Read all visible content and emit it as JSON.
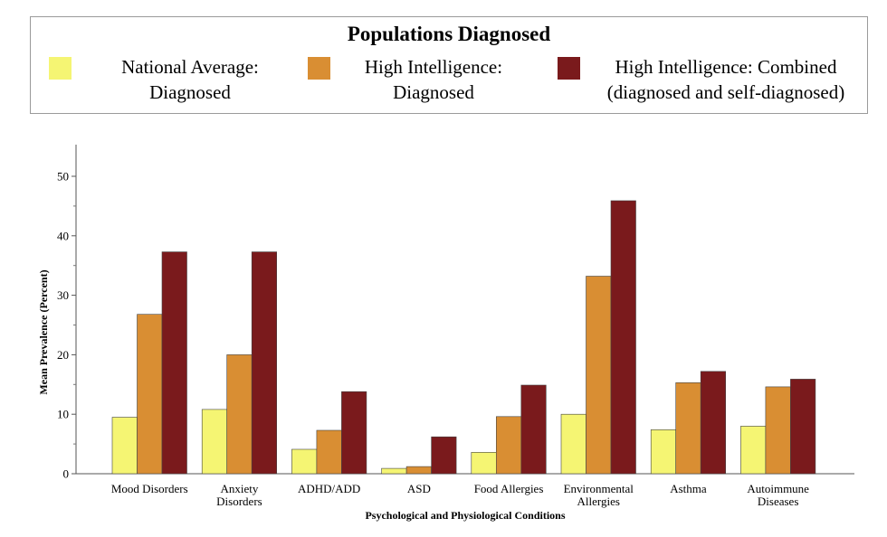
{
  "chart_data": {
    "type": "bar",
    "legend_title": "Populations Diagnosed",
    "categories": [
      [
        "Mood Disorders"
      ],
      [
        "Anxiety",
        "Disorders"
      ],
      [
        "ADHD/ADD"
      ],
      [
        "ASD"
      ],
      [
        "Food Allergies"
      ],
      [
        "Environmental",
        "Allergies"
      ],
      [
        "Asthma"
      ],
      [
        "Autoimmune",
        "Diseases"
      ]
    ],
    "series": [
      {
        "name": [
          "National Average:",
          "Diagnosed"
        ],
        "color": "#f5f573",
        "values": [
          9.5,
          10.8,
          4.1,
          0.9,
          3.6,
          10.0,
          7.4,
          8.0
        ]
      },
      {
        "name": [
          "High Intelligence:",
          "Diagnosed"
        ],
        "color": "#d98e33",
        "values": [
          26.8,
          20.0,
          7.3,
          1.2,
          9.6,
          33.2,
          15.3,
          14.6
        ]
      },
      {
        "name": [
          "High Intelligence: Combined",
          "(diagnosed and self-diagnosed)"
        ],
        "color": "#7a1a1c",
        "values": [
          37.3,
          37.3,
          13.8,
          6.2,
          14.9,
          45.9,
          17.2,
          15.9
        ]
      }
    ],
    "xlabel": "Psychological and Physiological Conditions",
    "ylabel": "Mean Prevalence (Percent)",
    "yticks": [
      0,
      10,
      20,
      30,
      40,
      50
    ],
    "ylim": [
      0,
      55
    ],
    "grid": false,
    "legend_position": "top"
  }
}
